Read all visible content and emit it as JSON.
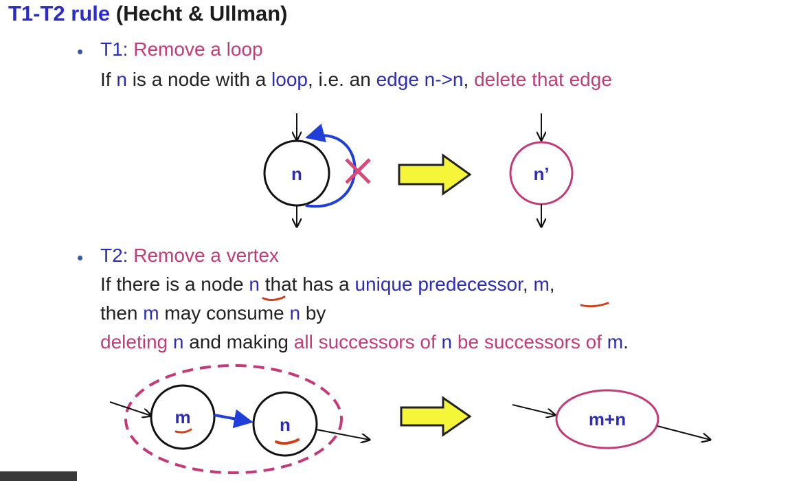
{
  "title": {
    "prefix": "T1-T2 rule",
    "suffix": " (Hecht & Ullman)"
  },
  "t1": {
    "heading_prefix": "T1:",
    "heading_text": " Remove a loop",
    "desc": {
      "p1": "If ",
      "n": "n",
      "p2": " is a node with a ",
      "loop": "loop",
      "p3": ", i.e. an ",
      "edge": "edge n->n",
      "p4": ", ",
      "delete": "delete that edge"
    },
    "node_before": "n",
    "node_after": "n’"
  },
  "t2": {
    "heading_prefix": "T2:",
    "heading_text": " Remove a vertex",
    "line1": {
      "p1": "If there is a node ",
      "n": "n",
      "p2": " that has a ",
      "unique": "unique predecessor",
      "p3": ", ",
      "m": "m",
      "p4": ","
    },
    "line2": {
      "p1": "then ",
      "m": "m",
      "p2": " may consume ",
      "n": "n",
      "p3": " by"
    },
    "line3": {
      "deleting": "deleting",
      "p1": " ",
      "n": "n",
      "p2": " and making ",
      "all": "all successors of ",
      "n2": "n",
      "be": " be successors of ",
      "m": "m",
      "p3": "."
    },
    "node_m": "m",
    "node_n": "n",
    "node_merged": "m+n"
  },
  "colors": {
    "pink": "#c43a78",
    "blue": "#2c2cb8",
    "loop_blue": "#1f3fd8",
    "annotation_red": "#d0401c",
    "arrow_fill": "#f5f53a"
  }
}
